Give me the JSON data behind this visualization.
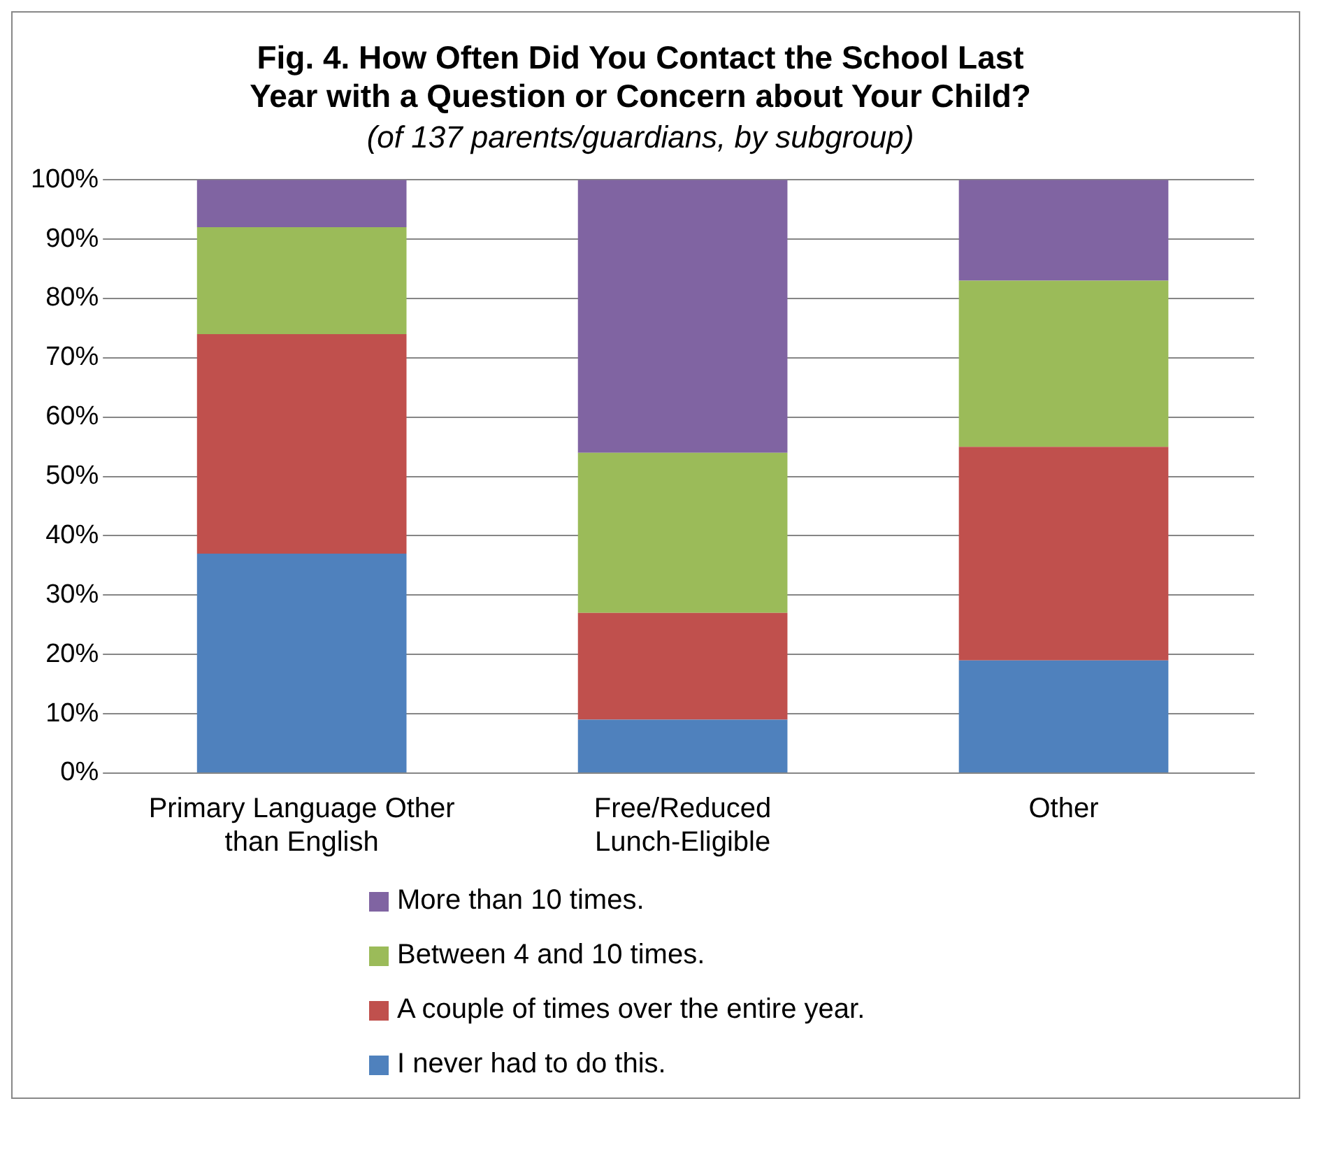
{
  "chart_data": {
    "type": "bar",
    "title": "Fig. 4. How Often Did You Contact the School Last Year with a Question or Concern about Your Child?",
    "subtitle": "(of 137 parents/guardians, by subgroup)",
    "categories": [
      "Primary Language Other than English",
      "Free/Reduced Lunch-Eligible",
      "Other"
    ],
    "stacked": true,
    "series": [
      {
        "name": "I never had to do this.",
        "color": "#4f81bd",
        "values": [
          37,
          9,
          19
        ]
      },
      {
        "name": "A couple of times over the entire year.",
        "color": "#c0504d",
        "values": [
          37,
          18,
          36
        ]
      },
      {
        "name": "Between 4 and 10 times.",
        "color": "#9bbb59",
        "values": [
          18,
          27,
          28
        ]
      },
      {
        "name": "More than 10 times.",
        "color": "#8064a2",
        "values": [
          8,
          46,
          17
        ]
      }
    ],
    "ylim": [
      0,
      100
    ],
    "yticks": [
      {
        "value": 0,
        "label": "0%"
      },
      {
        "value": 10,
        "label": "10%"
      },
      {
        "value": 20,
        "label": "20%"
      },
      {
        "value": 30,
        "label": "30%"
      },
      {
        "value": 40,
        "label": "40%"
      },
      {
        "value": 50,
        "label": "50%"
      },
      {
        "value": 60,
        "label": "60%"
      },
      {
        "value": 70,
        "label": "70%"
      },
      {
        "value": 80,
        "label": "80%"
      },
      {
        "value": 90,
        "label": "90%"
      },
      {
        "value": 100,
        "label": "100%"
      }
    ],
    "grid": "y",
    "legend": "bottom"
  }
}
